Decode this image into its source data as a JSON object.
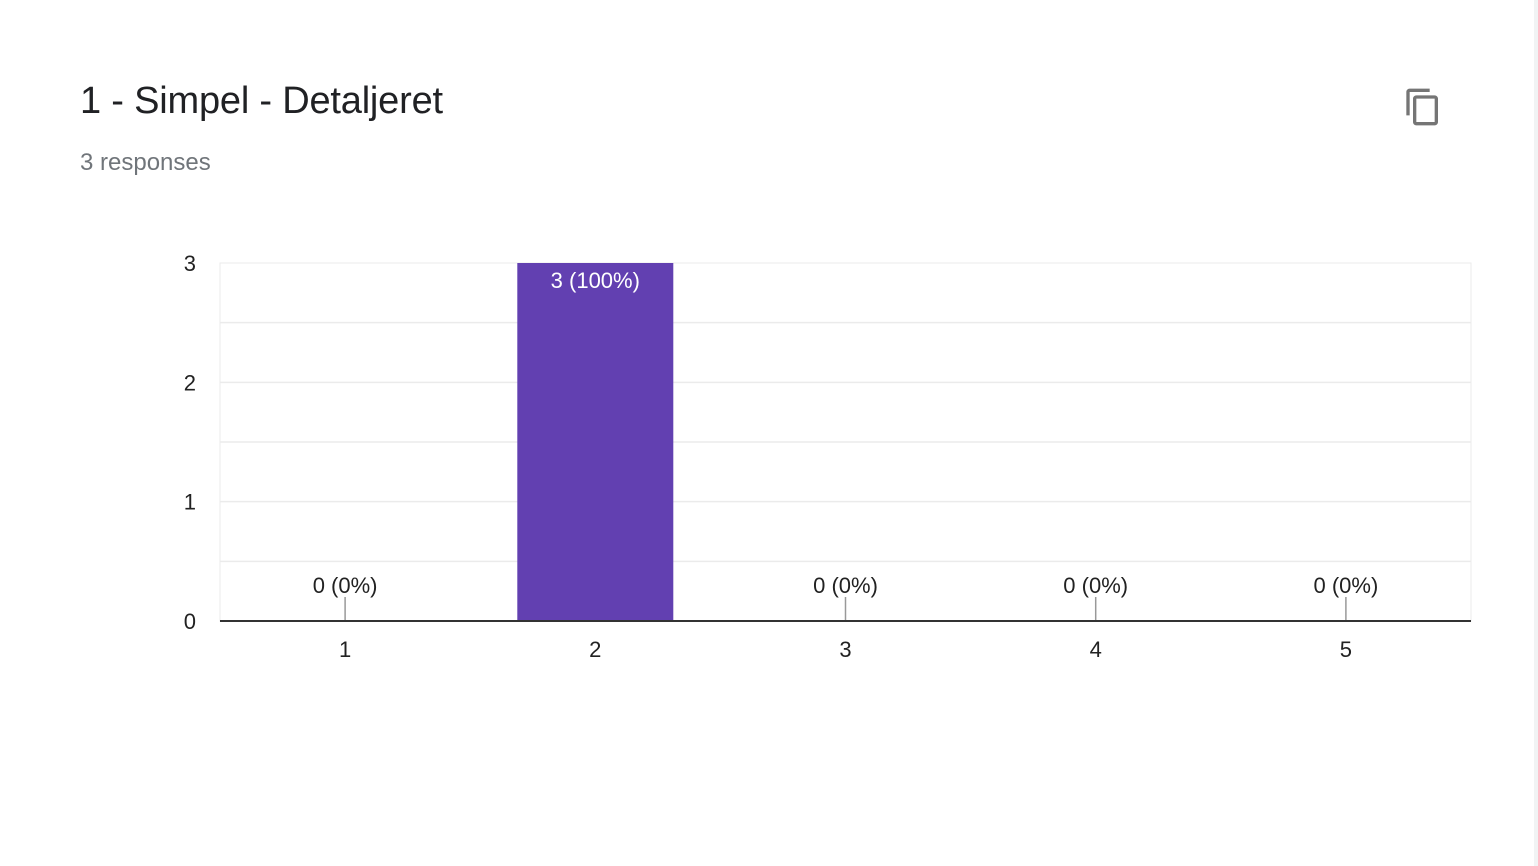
{
  "question": {
    "title": "1 - Simpel - Detaljeret",
    "responses_label": "3 responses"
  },
  "icons": {
    "copy": "copy-icon"
  },
  "colors": {
    "bar": "#6240b1",
    "grid": "#ebebeb",
    "axis": "#333333",
    "text": "#222222",
    "label_inside": "#ffffff"
  },
  "chart_data": {
    "type": "bar",
    "categories": [
      "1",
      "2",
      "3",
      "4",
      "5"
    ],
    "values": [
      0,
      3,
      0,
      0,
      0
    ],
    "data_labels": [
      "0 (0%)",
      "3 (100%)",
      "0 (0%)",
      "0 (0%)",
      "0 (0%)"
    ],
    "ylim": [
      0,
      3
    ],
    "yticks": [
      0,
      1,
      2,
      3
    ],
    "grid": true,
    "legend": "none"
  }
}
